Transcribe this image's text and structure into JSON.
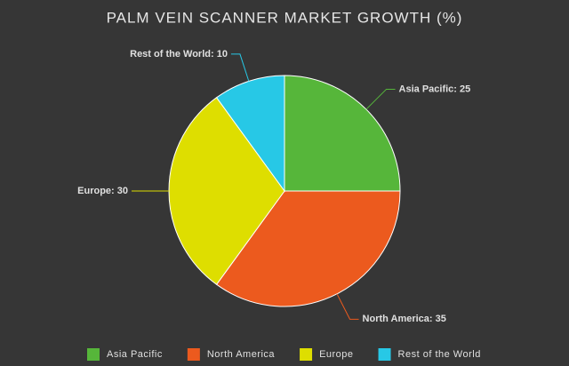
{
  "chart_data": {
    "type": "pie",
    "title": "PALM VEIN SCANNER MARKET GROWTH (%)",
    "categories": [
      "Asia Pacific",
      "North America",
      "Europe",
      "Rest of the World"
    ],
    "values": [
      25,
      35,
      30,
      10
    ],
    "value_labels": [
      "Asia Pacific: 25",
      "North America: 35",
      "Europe: 30",
      "Rest of the World: 10"
    ],
    "colors": [
      "#56b63a",
      "#ec5a1e",
      "#dede00",
      "#27c8e6"
    ],
    "legend": "bottom"
  }
}
